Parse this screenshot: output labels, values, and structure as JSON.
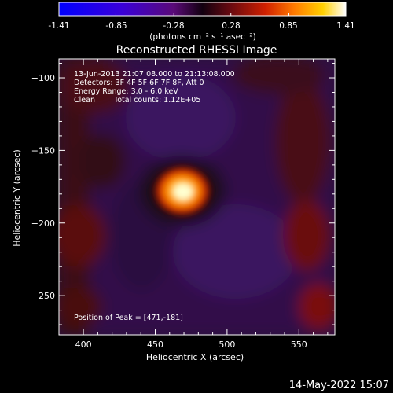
{
  "colorbar": {
    "ticks": [
      "-1.41",
      "-0.85",
      "-0.28",
      "0.28",
      "0.85",
      "1.41"
    ],
    "unit_label": "(photons cm⁻² s⁻¹ asec⁻²)",
    "range": [
      -1.41,
      1.41
    ]
  },
  "chart_data": {
    "type": "heatmap",
    "title": "Reconstructed RHESSI Image",
    "xlabel": "Heliocentric X (arcsec)",
    "ylabel": "Heliocentric Y (arcsec)",
    "xlim": [
      383,
      575
    ],
    "ylim": [
      -277,
      -87
    ],
    "xticks": [
      400,
      450,
      500,
      550
    ],
    "yticks": [
      -100,
      -150,
      -200,
      -250
    ],
    "peak": {
      "x": 471,
      "y": -181
    },
    "annotations": [
      "13-Jun-2013 21:07:08.000 to 21:13:08.000",
      "Detectors: 3F 4F 5F 6F 7F 8F, Att 0",
      "Energy Range: 3.0 - 6.0 keV",
      "Clean",
      "Total counts: 1.12E+05",
      "Position of Peak = [471,-181]"
    ]
  },
  "timestamp": "14-May-2022 15:07"
}
